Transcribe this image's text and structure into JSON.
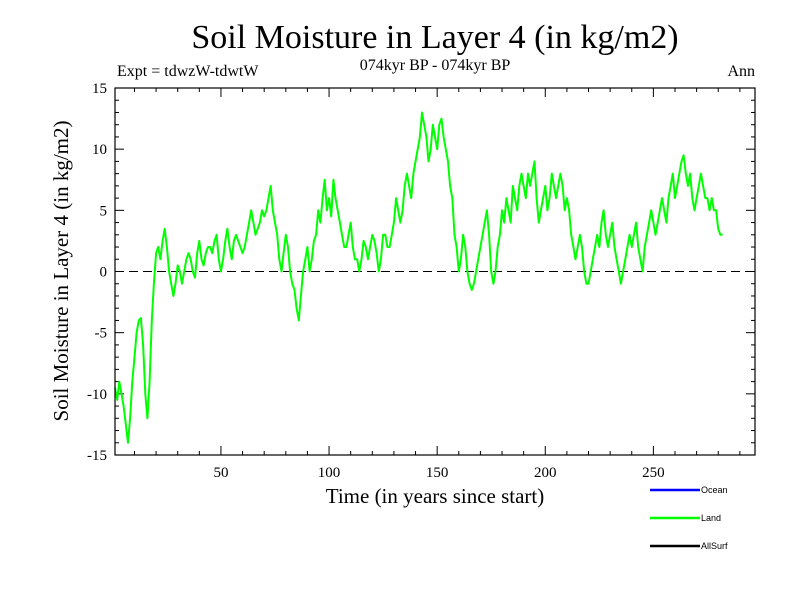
{
  "chart_data": {
    "type": "line",
    "title": "Soil Moisture in Layer 4 (in kg/m2)",
    "subtitle_left": "Expt = tdwzW-tdwtW",
    "subtitle_center": "074kyr BP - 074kyr BP",
    "subtitle_right": "Ann",
    "xlabel": "Time (in years since start)",
    "ylabel": "Soil Moisture in Layer 4 (in kg/m2)",
    "xlim": [
      1,
      297
    ],
    "ylim": [
      -15,
      15
    ],
    "x_ticks": [
      50,
      100,
      150,
      200,
      250
    ],
    "y_ticks": [
      -15,
      -10,
      -5,
      0,
      5,
      10,
      15
    ],
    "zero_line": true,
    "legend": [
      {
        "name": "Ocean",
        "color": "#0000ff"
      },
      {
        "name": "Land",
        "color": "#00ff00"
      },
      {
        "name": "AllSurf",
        "color": "#000000"
      }
    ],
    "series": [
      {
        "name": "Land",
        "color": "#00ff00",
        "x_start": 1,
        "x_step": 1,
        "values": [
          -9.5,
          -10.5,
          -9,
          -10,
          -11,
          -12.5,
          -14,
          -12,
          -9,
          -7,
          -5,
          -4,
          -3.8,
          -6,
          -10,
          -12,
          -9,
          -4,
          -1,
          1.5,
          2,
          1,
          2.5,
          3.5,
          2,
          0,
          -1,
          -2,
          -1,
          0.5,
          0,
          -1,
          0,
          1,
          1.5,
          1,
          0,
          -0.5,
          1.5,
          2.5,
          1,
          0.5,
          1.5,
          2,
          2,
          1.5,
          2.5,
          3,
          1,
          0,
          1,
          2.5,
          3.5,
          2,
          1,
          2.5,
          3,
          2.5,
          2,
          1.5,
          2,
          3,
          4,
          5,
          4,
          3,
          3.5,
          4,
          5,
          4.5,
          5,
          6,
          7,
          5,
          4,
          3,
          1,
          0,
          1.5,
          3,
          2,
          0,
          -1,
          -1.5,
          -3,
          -4,
          -2,
          0,
          1,
          2,
          0,
          1,
          2.5,
          3,
          5,
          4,
          6,
          7.5,
          5,
          6,
          4.5,
          7.5,
          6,
          5,
          4,
          3,
          2,
          2,
          3,
          4,
          2,
          1,
          1,
          0,
          1,
          2.5,
          2,
          1,
          2,
          3,
          2.5,
          1.5,
          0,
          1,
          3,
          3,
          2,
          2,
          3,
          4,
          6,
          5,
          4,
          5,
          7,
          8,
          7,
          6,
          8,
          9,
          10,
          11,
          13,
          12,
          11,
          9,
          10,
          12,
          11,
          10,
          12,
          12.5,
          11,
          10,
          9,
          7,
          6,
          3,
          2,
          0,
          1,
          3,
          2,
          0,
          -1,
          -1.5,
          -1,
          0,
          1,
          2,
          3,
          4,
          5,
          3,
          0,
          -1,
          0,
          2,
          3,
          5,
          4,
          6,
          5,
          4,
          7,
          6,
          5,
          7,
          8,
          7,
          6,
          8,
          7,
          8,
          9,
          6,
          4,
          5,
          6,
          7,
          5,
          6,
          8,
          7,
          6,
          7,
          8,
          7,
          5,
          6,
          5,
          3,
          2,
          1,
          2,
          3,
          2,
          0,
          -1,
          -1,
          0,
          1,
          2,
          3,
          2,
          4,
          5,
          3,
          2,
          3,
          4,
          2,
          1,
          0,
          -1,
          0,
          1,
          2,
          3,
          2,
          3,
          4,
          2,
          1,
          0,
          2,
          3,
          4,
          5,
          4,
          3,
          4,
          5,
          6,
          5,
          4,
          6,
          7,
          8,
          6,
          7,
          8,
          9,
          9.5,
          8,
          7,
          8,
          6,
          5,
          6,
          7,
          8,
          7,
          6,
          6,
          5,
          6,
          5,
          5,
          3.5,
          3,
          3
        ]
      }
    ]
  }
}
